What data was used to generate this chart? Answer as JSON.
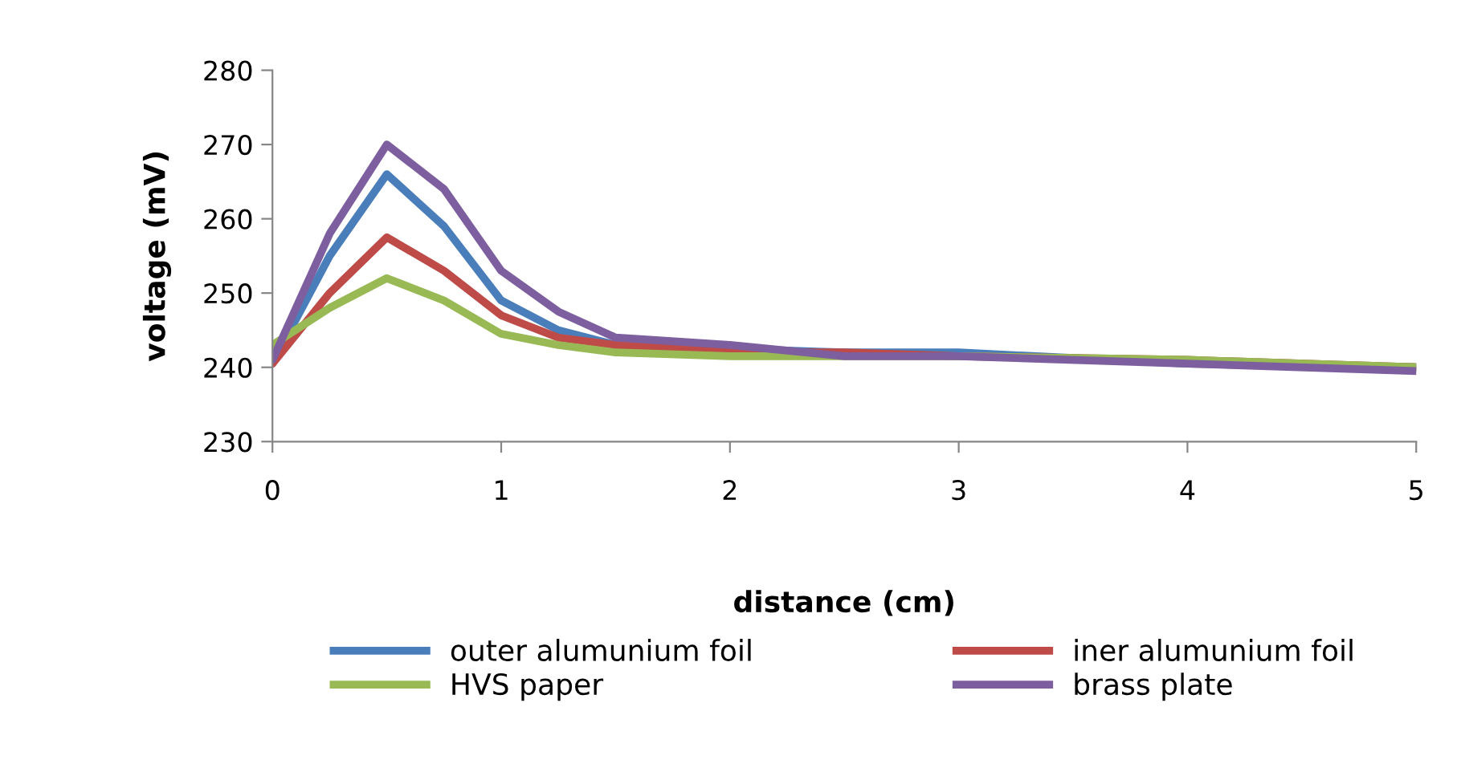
{
  "chart_data": {
    "type": "line",
    "xlabel": "distance (cm)",
    "ylabel": "voltage (mV)",
    "x": [
      0,
      0.25,
      0.5,
      0.75,
      1,
      1.25,
      1.5,
      2,
      2.5,
      3,
      4,
      5
    ],
    "series": [
      {
        "name": "outer alumunium foil",
        "color": "#4a7ebb",
        "values": [
          240.5,
          255,
          266,
          259,
          249,
          245,
          243,
          242.5,
          242,
          242,
          240.5,
          240
        ]
      },
      {
        "name": "iner alumunium foil",
        "color": "#be4b48",
        "values": [
          240.5,
          250,
          257.5,
          253,
          247,
          244,
          243,
          242,
          242,
          241.5,
          241,
          240
        ]
      },
      {
        "name": "HVS paper",
        "color": "#98b954",
        "values": [
          243,
          248,
          252,
          249,
          244.5,
          243,
          242,
          241.5,
          241.5,
          241.5,
          241,
          240
        ]
      },
      {
        "name": "brass plate",
        "color": "#7d5fa0",
        "values": [
          241,
          258,
          270,
          264,
          253,
          247.5,
          244,
          243,
          241.5,
          241.5,
          240.5,
          239.5
        ]
      }
    ],
    "xlim": [
      0,
      5
    ],
    "xticks": [
      0,
      1,
      2,
      3,
      4,
      5
    ],
    "ylim": [
      230,
      280
    ],
    "yticks": [
      230,
      240,
      250,
      260,
      270,
      280
    ],
    "grid": false,
    "legend": "bottom",
    "marker": "none",
    "line_style": "solid"
  }
}
